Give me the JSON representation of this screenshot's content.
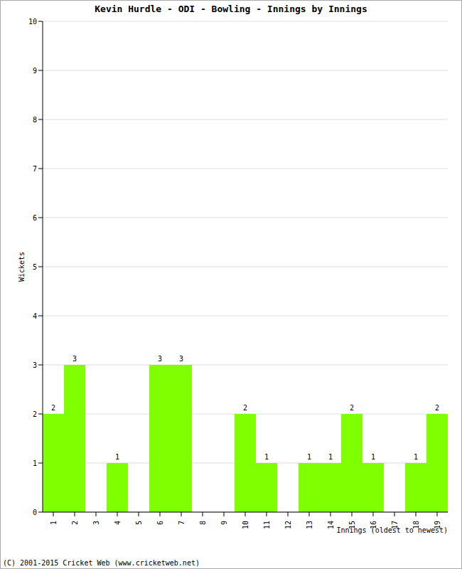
{
  "chart_data": {
    "type": "bar",
    "title": "Kevin Hurdle - ODI - Bowling - Innings by Innings",
    "x_label": "Innings (oldest to newest)",
    "y_label": "Wickets",
    "annotations": [
      "(C) 2001-2015 Cricket Web (www.cricketweb.net)"
    ],
    "categories": [
      "1",
      "2",
      "3",
      "4",
      "5",
      "6",
      "7",
      "8",
      "9",
      "10",
      "11",
      "12",
      "13",
      "14",
      "15",
      "16",
      "17",
      "18",
      "19"
    ],
    "values": [
      2,
      3,
      0,
      1,
      0,
      3,
      3,
      0,
      0,
      2,
      1,
      0,
      1,
      1,
      2,
      1,
      0,
      1,
      2
    ],
    "color": "#80ff00",
    "ylim": [
      0,
      10
    ],
    "yticks": [
      0,
      1,
      2,
      3,
      4,
      5,
      6,
      7,
      8,
      9,
      10
    ],
    "grid": true,
    "data_labels": true
  }
}
